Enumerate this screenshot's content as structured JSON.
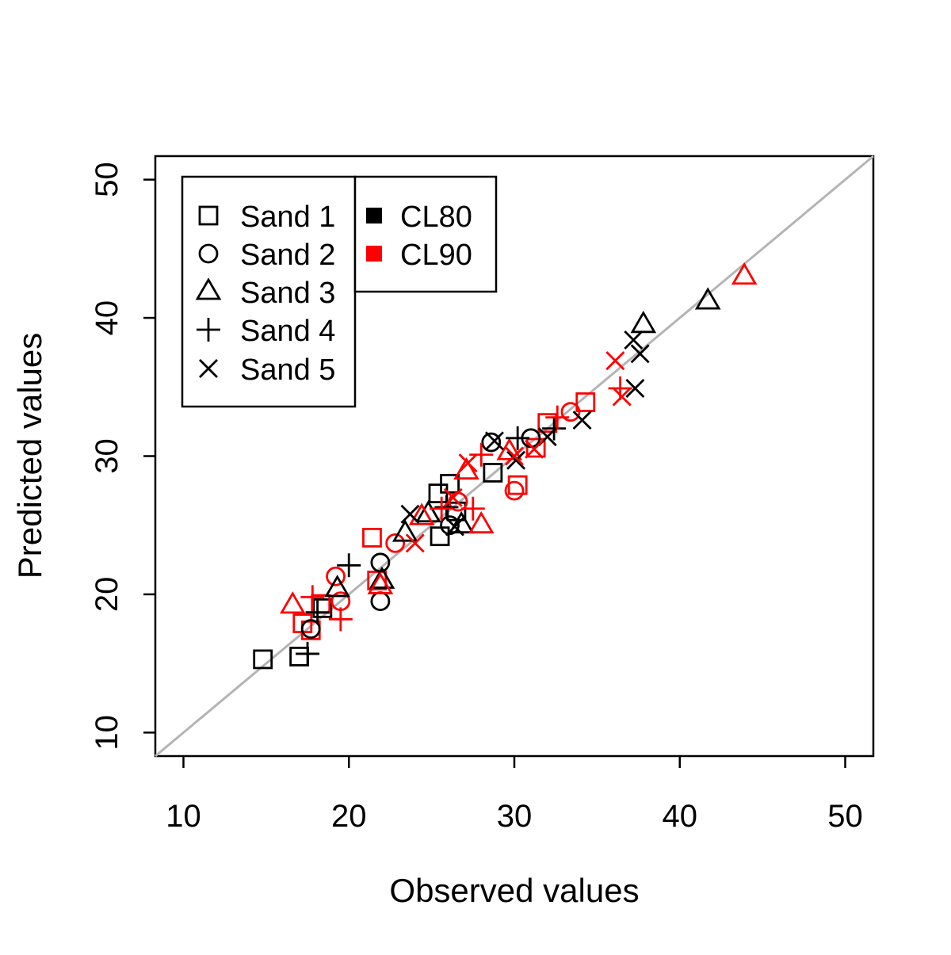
{
  "figure": {
    "background": "#ffffff"
  },
  "axes": {
    "x": {
      "label": "Observed values",
      "ticks": [
        "10",
        "20",
        "30",
        "40",
        "50"
      ],
      "tick_values": [
        10,
        20,
        30,
        40,
        50
      ],
      "range": [
        8.3,
        51.7
      ]
    },
    "y": {
      "label": "Predicted values",
      "ticks": [
        "10",
        "20",
        "30",
        "40",
        "50"
      ],
      "tick_values": [
        10,
        20,
        30,
        40,
        50
      ],
      "range": [
        8.3,
        51.7
      ]
    }
  },
  "reference_line": {
    "type": "identity",
    "from": 8.3,
    "to": 51.7,
    "color": "#b4b4b4"
  },
  "legend": {
    "sands": [
      {
        "symbol": "square",
        "label": "Sand 1"
      },
      {
        "symbol": "circle",
        "label": "Sand 2"
      },
      {
        "symbol": "triangle",
        "label": "Sand 3"
      },
      {
        "symbol": "plus",
        "label": "Sand 4"
      },
      {
        "symbol": "cross",
        "label": "Sand 5"
      }
    ],
    "cl": [
      {
        "color": "#000000",
        "label": "CL80"
      },
      {
        "color": "#ff0000",
        "label": "CL90"
      }
    ]
  },
  "chart_data": {
    "type": "scatter",
    "title": "",
    "xlabel": "Observed values",
    "ylabel": "Predicted values",
    "xlim": [
      8.3,
      51.7
    ],
    "ylim": [
      8.3,
      51.7
    ],
    "grid": false,
    "series": [
      {
        "name": "Sand 1 CL80",
        "symbol": "square",
        "color": "#000000",
        "points": [
          [
            14.8,
            15.3
          ],
          [
            17.0,
            15.5
          ],
          [
            18.4,
            19.0
          ],
          [
            25.4,
            27.3
          ],
          [
            26.1,
            28.0
          ],
          [
            26.5,
            26.0
          ],
          [
            25.5,
            24.2
          ],
          [
            28.7,
            28.8
          ]
        ]
      },
      {
        "name": "Sand 1 CL90",
        "symbol": "square",
        "color": "#ff0000",
        "points": [
          [
            17.2,
            17.9
          ],
          [
            17.7,
            17.4
          ],
          [
            18.3,
            19.3
          ],
          [
            21.4,
            24.1
          ],
          [
            21.7,
            21.0
          ],
          [
            30.2,
            27.9
          ],
          [
            31.3,
            30.6
          ],
          [
            32.0,
            32.4
          ],
          [
            34.3,
            33.9
          ]
        ]
      },
      {
        "name": "Sand 2 CL80",
        "symbol": "circle",
        "color": "#000000",
        "points": [
          [
            17.7,
            17.5
          ],
          [
            21.9,
            22.3
          ],
          [
            21.9,
            19.5
          ],
          [
            26.1,
            25.0
          ],
          [
            28.6,
            31.0
          ],
          [
            31.0,
            31.3
          ]
        ]
      },
      {
        "name": "Sand 2 CL90",
        "symbol": "circle",
        "color": "#ff0000",
        "points": [
          [
            19.5,
            19.5
          ],
          [
            19.2,
            21.3
          ],
          [
            22.8,
            23.7
          ],
          [
            26.6,
            26.7
          ],
          [
            30.0,
            27.5
          ],
          [
            33.4,
            33.2
          ]
        ]
      },
      {
        "name": "Sand 3 CL80",
        "symbol": "triangle",
        "color": "#000000",
        "points": [
          [
            19.3,
            20.4
          ],
          [
            22.0,
            21.0
          ],
          [
            23.4,
            24.4
          ],
          [
            24.8,
            25.8
          ],
          [
            26.8,
            25.0
          ],
          [
            37.8,
            39.5
          ],
          [
            41.7,
            41.2
          ]
        ]
      },
      {
        "name": "Sand 3 CL90",
        "symbol": "triangle",
        "color": "#ff0000",
        "points": [
          [
            16.6,
            19.2
          ],
          [
            21.9,
            20.6
          ],
          [
            24.4,
            25.6
          ],
          [
            27.1,
            28.9
          ],
          [
            28.0,
            25.0
          ],
          [
            29.7,
            30.3
          ],
          [
            43.9,
            43.0
          ]
        ]
      },
      {
        "name": "Sand 4 CL80",
        "symbol": "plus",
        "color": "#000000",
        "points": [
          [
            17.5,
            15.7
          ],
          [
            18.1,
            18.7
          ],
          [
            20.0,
            22.1
          ],
          [
            25.9,
            26.3
          ],
          [
            30.2,
            31.3
          ],
          [
            32.4,
            32.0
          ]
        ]
      },
      {
        "name": "Sand 4 CL90",
        "symbol": "plus",
        "color": "#ff0000",
        "points": [
          [
            17.8,
            19.8
          ],
          [
            19.5,
            18.2
          ],
          [
            25.6,
            26.2
          ],
          [
            27.5,
            26.2
          ],
          [
            28.0,
            30.1
          ],
          [
            32.6,
            32.8
          ],
          [
            36.4,
            34.9
          ]
        ]
      },
      {
        "name": "Sand 5 CL80",
        "symbol": "cross",
        "color": "#000000",
        "points": [
          [
            23.7,
            25.8
          ],
          [
            26.4,
            24.9
          ],
          [
            28.8,
            31.1
          ],
          [
            30.1,
            29.7
          ],
          [
            32.0,
            31.4
          ],
          [
            34.1,
            32.6
          ],
          [
            37.3,
            34.9
          ],
          [
            37.6,
            37.4
          ],
          [
            37.2,
            38.4
          ]
        ]
      },
      {
        "name": "Sand 5 CL90",
        "symbol": "cross",
        "color": "#ff0000",
        "points": [
          [
            24.0,
            23.7
          ],
          [
            26.3,
            27.0
          ],
          [
            27.2,
            29.5
          ],
          [
            30.0,
            30.0
          ],
          [
            31.2,
            30.5
          ],
          [
            36.1,
            36.9
          ],
          [
            36.5,
            34.3
          ]
        ]
      }
    ]
  }
}
